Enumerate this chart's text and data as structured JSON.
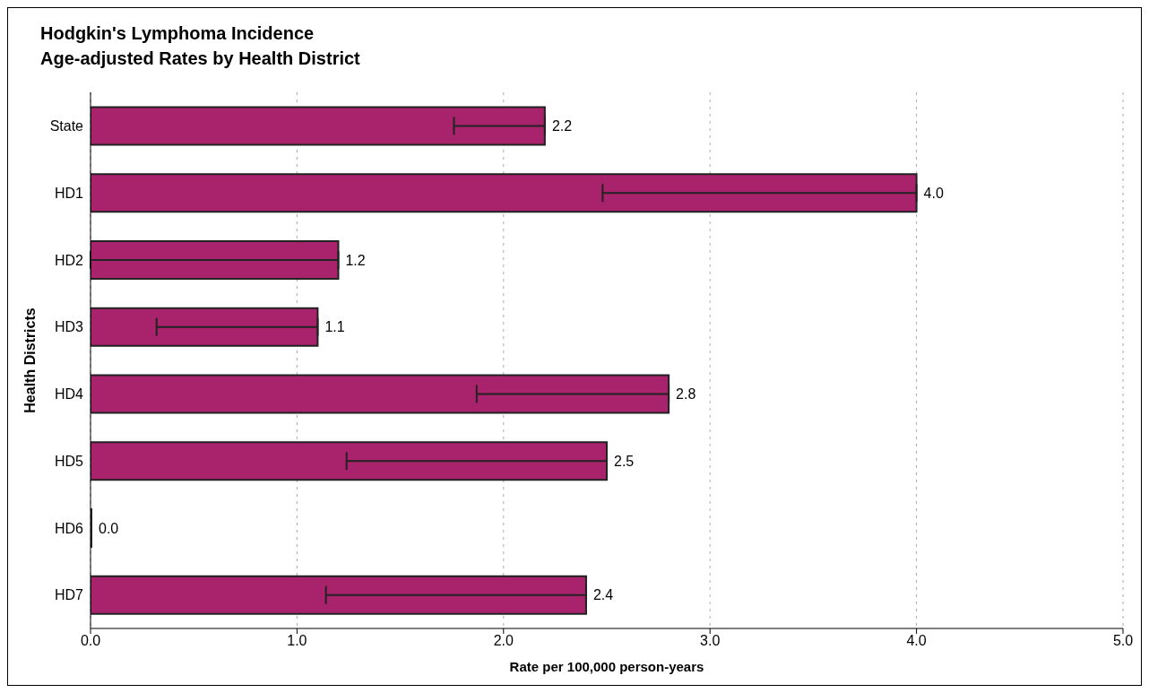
{
  "chart_data": {
    "type": "bar",
    "orientation": "horizontal",
    "title": "Hodgkin's Lymphoma Incidence\nAge-adjusted Rates by Health District",
    "xlabel": "Rate per 100,000 person-years",
    "ylabel": "Health Districts",
    "categories": [
      "State",
      "HD1",
      "HD2",
      "HD3",
      "HD4",
      "HD5",
      "HD6",
      "HD7"
    ],
    "values": [
      2.2,
      4.0,
      1.2,
      1.1,
      2.8,
      2.5,
      0.0,
      2.4
    ],
    "value_labels": [
      "2.2",
      "4.0",
      "1.2",
      "1.1",
      "2.8",
      "2.5",
      "0.0",
      "2.4"
    ],
    "errors": [
      [
        1.76,
        2.2
      ],
      [
        2.48,
        4.0
      ],
      [
        0.0,
        1.2
      ],
      [
        0.32,
        1.1
      ],
      [
        1.87,
        2.8
      ],
      [
        1.24,
        2.5
      ],
      null,
      [
        1.14,
        2.4
      ]
    ],
    "color": "#a8226c",
    "xlim": [
      0,
      5
    ],
    "xticks": [
      {
        "value": 0,
        "label": "0.0"
      },
      {
        "value": 1,
        "label": "1.0"
      },
      {
        "value": 2,
        "label": "2.0"
      },
      {
        "value": 3,
        "label": "3.0"
      },
      {
        "value": 4,
        "label": "4.0"
      },
      {
        "value": 5,
        "label": "5.0"
      }
    ],
    "grid": "x",
    "legend": false
  }
}
